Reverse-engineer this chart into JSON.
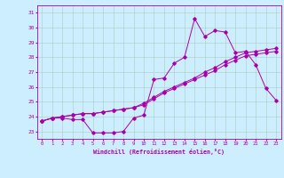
{
  "xlabel": "Windchill (Refroidissement éolien,°C)",
  "bg_color": "#cceeff",
  "grid_color": "#aaccbb",
  "line_color": "#aa00aa",
  "x_values": [
    0,
    1,
    2,
    3,
    4,
    5,
    6,
    7,
    8,
    9,
    10,
    11,
    12,
    13,
    14,
    15,
    16,
    17,
    18,
    19,
    20,
    21,
    22,
    23
  ],
  "line1": [
    23.7,
    23.9,
    23.9,
    23.8,
    23.8,
    22.9,
    22.9,
    22.9,
    23.0,
    23.9,
    24.1,
    26.5,
    26.6,
    27.6,
    28.0,
    30.6,
    29.4,
    29.8,
    29.7,
    28.3,
    28.4,
    27.5,
    25.9,
    25.1
  ],
  "line2": [
    23.7,
    23.9,
    24.0,
    24.1,
    24.2,
    24.2,
    24.3,
    24.4,
    24.5,
    24.6,
    24.8,
    25.2,
    25.6,
    25.9,
    26.2,
    26.5,
    26.8,
    27.1,
    27.5,
    27.8,
    28.1,
    28.2,
    28.3,
    28.4
  ],
  "line3": [
    23.7,
    23.9,
    24.0,
    24.1,
    24.2,
    24.2,
    24.3,
    24.4,
    24.5,
    24.6,
    24.9,
    25.3,
    25.7,
    26.0,
    26.3,
    26.6,
    27.0,
    27.3,
    27.7,
    28.0,
    28.3,
    28.4,
    28.5,
    28.6
  ],
  "ylim": [
    22.5,
    31.5
  ],
  "yticks": [
    23,
    24,
    25,
    26,
    27,
    28,
    29,
    30,
    31
  ],
  "xlim": [
    -0.5,
    23.5
  ]
}
